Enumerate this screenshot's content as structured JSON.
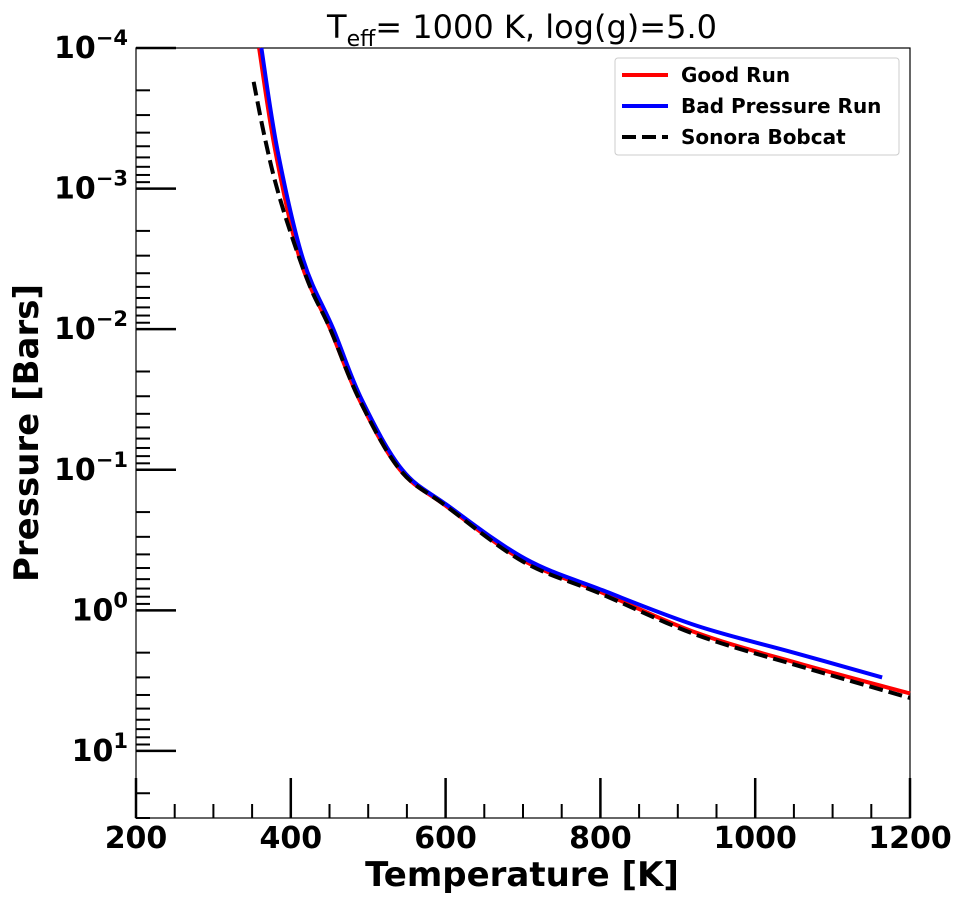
{
  "chart_data": {
    "type": "line",
    "title": {
      "main": "T",
      "sub": "eff",
      "rest": "= 1000 K, log(g)=5.0"
    },
    "xlabel": "Temperature [K]",
    "ylabel": "Pressure [Bars]",
    "xlim": [
      200,
      1200
    ],
    "ylim": [
      0.0001,
      30
    ],
    "yscale": "log",
    "yinverted": true,
    "grid": false,
    "legend_placement": "top-right",
    "xticks": [
      200,
      400,
      600,
      800,
      1000,
      1200
    ],
    "xtick_labels": [
      "200",
      "400",
      "600",
      "800",
      "1000",
      "1200"
    ],
    "yticks": [
      0.0001,
      0.001,
      0.01,
      0.1,
      1,
      10
    ],
    "ytick_labels": [
      {
        "base": "10",
        "exp": "−4"
      },
      {
        "base": "10",
        "exp": "−3"
      },
      {
        "base": "10",
        "exp": "−2"
      },
      {
        "base": "10",
        "exp": "−1"
      },
      {
        "base": "10",
        "exp": "0"
      },
      {
        "base": "10",
        "exp": "1"
      }
    ],
    "series": [
      {
        "name": "Good Run",
        "color": "#ff0000",
        "style": "solid",
        "T": [
          359,
          380,
          412,
          451,
          489,
          541,
          600,
          700,
          800,
          925,
          1058,
          1200
        ],
        "P": [
          0.0001,
          0.00054,
          0.0032,
          0.01,
          0.032,
          0.1,
          0.18,
          0.44,
          0.74,
          1.45,
          2.4,
          3.9
        ]
      },
      {
        "name": "Bad Pressure Run",
        "color": "#0000ff",
        "style": "solid",
        "T": [
          362,
          383,
          416,
          455,
          492,
          544,
          603,
          703,
          803,
          925,
          1050,
          1164
        ],
        "P": [
          0.0001,
          0.00054,
          0.0032,
          0.01,
          0.032,
          0.1,
          0.18,
          0.43,
          0.72,
          1.29,
          2.0,
          3.0
        ]
      },
      {
        "name": "Sonora Bobcat",
        "color": "#000000",
        "style": "dashed",
        "T": [
          352,
          365,
          380,
          399,
          425,
          451,
          489,
          541,
          600,
          700,
          800,
          925,
          1058,
          1200
        ],
        "P": [
          0.000174,
          0.0004,
          0.0009,
          0.002,
          0.005,
          0.01,
          0.032,
          0.1,
          0.18,
          0.45,
          0.76,
          1.5,
          2.5,
          4.2
        ]
      }
    ]
  }
}
